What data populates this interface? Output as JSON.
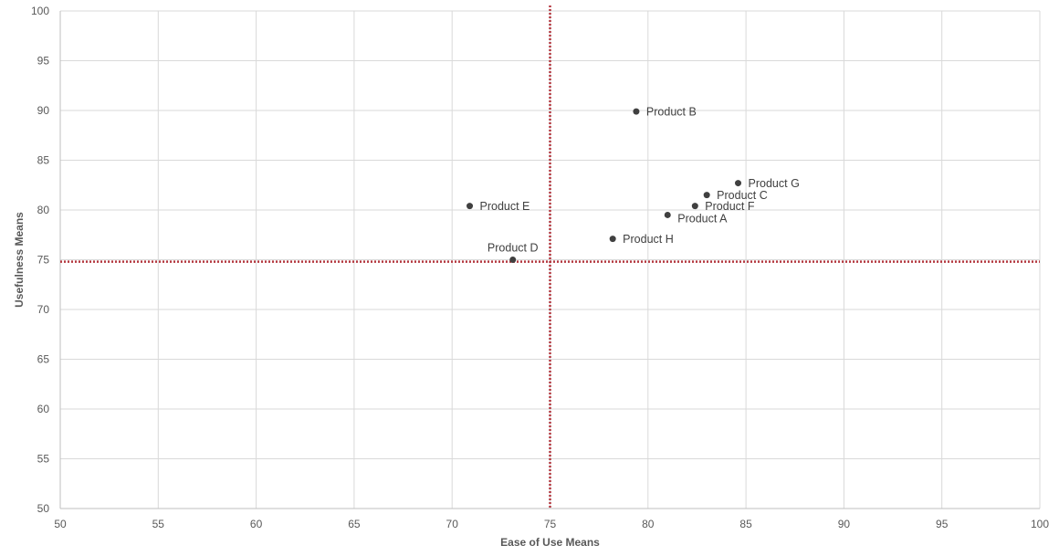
{
  "chart_data": {
    "type": "scatter",
    "title": "",
    "xlabel": "Ease of Use Means",
    "ylabel": "Usefulness Means",
    "xlim": [
      50,
      100
    ],
    "ylim": [
      50,
      100
    ],
    "xticks": [
      50,
      55,
      60,
      65,
      70,
      75,
      80,
      85,
      90,
      95,
      100
    ],
    "yticks": [
      50,
      55,
      60,
      65,
      70,
      75,
      80,
      85,
      90,
      95,
      100
    ],
    "grid": true,
    "reference_lines": {
      "x": 75,
      "y": 74.8,
      "style": "dotted",
      "color": "#b4373f"
    },
    "marker_color": "#404040",
    "gridline_color": "#d9d9d9",
    "points": [
      {
        "label": "Product A",
        "x": 81.0,
        "y": 79.5,
        "label_pos": "below-right"
      },
      {
        "label": "Product B",
        "x": 79.4,
        "y": 89.9,
        "label_pos": "right"
      },
      {
        "label": "Product C",
        "x": 83.0,
        "y": 81.5,
        "label_pos": "right"
      },
      {
        "label": "Product D",
        "x": 73.1,
        "y": 75.0,
        "label_pos": "above"
      },
      {
        "label": "Product E",
        "x": 70.9,
        "y": 80.4,
        "label_pos": "right"
      },
      {
        "label": "Product F",
        "x": 82.4,
        "y": 80.4,
        "label_pos": "right"
      },
      {
        "label": "Product G",
        "x": 84.6,
        "y": 82.7,
        "label_pos": "right"
      },
      {
        "label": "Product H",
        "x": 78.2,
        "y": 77.1,
        "label_pos": "right"
      }
    ]
  }
}
